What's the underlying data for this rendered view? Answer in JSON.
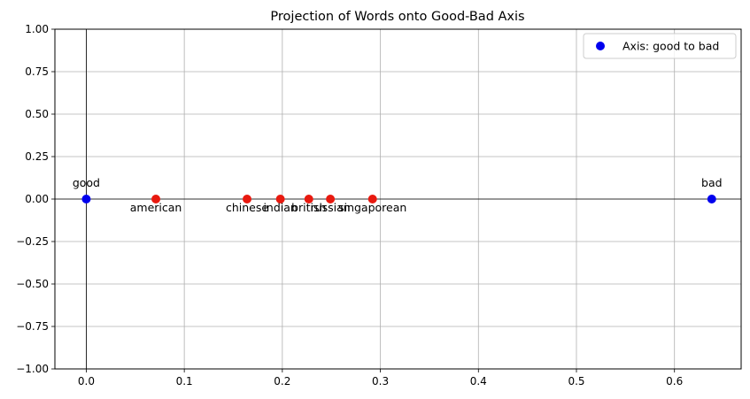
{
  "chart_data": {
    "type": "scatter",
    "title": "Projection of Words onto Good-Bad Axis",
    "xlabel": "",
    "ylabel": "",
    "xlim": [
      -0.032,
      0.668
    ],
    "ylim": [
      -1.0,
      1.0
    ],
    "xticks": [
      0.0,
      0.1,
      0.2,
      0.3,
      0.4,
      0.5,
      0.6
    ],
    "xtick_labels": [
      "0.0",
      "0.1",
      "0.2",
      "0.3",
      "0.4",
      "0.5",
      "0.6"
    ],
    "yticks": [
      1.0,
      0.75,
      0.5,
      0.25,
      0.0,
      -0.25,
      -0.5,
      -0.75,
      -1.0
    ],
    "ytick_labels": [
      "1.00",
      "0.75",
      "0.50",
      "0.25",
      "0.00",
      "−0.25",
      "−0.50",
      "−0.75",
      "−1.00"
    ],
    "grid": true,
    "reference_lines": {
      "x": 0,
      "y": 0
    },
    "legend": {
      "placement": "top-right",
      "entries": [
        {
          "label": "Axis: good to bad",
          "color": "#0000ee"
        }
      ]
    },
    "series": [
      {
        "name": "Axis: good to bad",
        "color": "#0000ee",
        "points": [
          {
            "x": 0.0,
            "y": 0.0,
            "label": "good",
            "label_pos": "above"
          },
          {
            "x": 0.638,
            "y": 0.0,
            "label": "bad",
            "label_pos": "above"
          }
        ]
      },
      {
        "color": "#e8190f",
        "points": [
          {
            "x": 0.071,
            "y": 0.0,
            "label": "american",
            "label_pos": "below"
          },
          {
            "x": 0.164,
            "y": 0.0,
            "label": "chinese",
            "label_pos": "below"
          },
          {
            "x": 0.198,
            "y": 0.0,
            "label": "indian",
            "label_pos": "below"
          },
          {
            "x": 0.227,
            "y": 0.0,
            "label": "british",
            "label_pos": "below"
          },
          {
            "x": 0.249,
            "y": 0.0,
            "label": "russian",
            "label_pos": "below"
          },
          {
            "x": 0.292,
            "y": 0.0,
            "label": "singaporean",
            "label_pos": "below"
          }
        ]
      }
    ]
  }
}
